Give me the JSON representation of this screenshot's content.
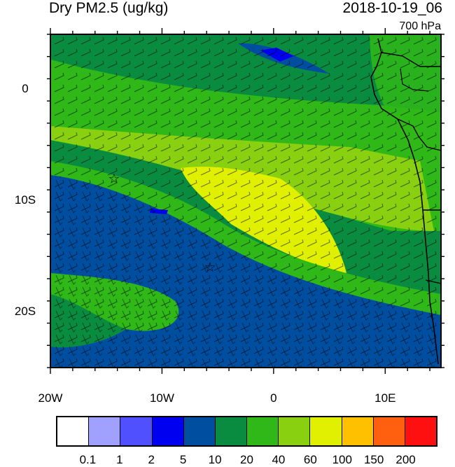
{
  "title": "Dry PM2.5 (ug/kg)",
  "datetime": "2018-10-19_06",
  "level": "700 hPa",
  "map": {
    "lon_range": [
      -20,
      15
    ],
    "lat_range": [
      -25,
      5
    ],
    "x_ticks": [
      {
        "lon": -20,
        "label": "20W"
      },
      {
        "lon": -10,
        "label": "10W"
      },
      {
        "lon": 0,
        "label": "0"
      },
      {
        "lon": 10,
        "label": "10E"
      }
    ],
    "y_ticks": [
      {
        "lat": 0,
        "label": "0"
      },
      {
        "lat": -10,
        "label": "10S"
      },
      {
        "lat": -20,
        "label": "20S"
      }
    ],
    "markers": [
      {
        "name": "star-marker-1",
        "lon": -14.3,
        "lat": -8.0,
        "symbol": "☆"
      },
      {
        "name": "star-marker-2",
        "lon": -5.7,
        "lat": -16.0,
        "symbol": "☆"
      }
    ]
  },
  "colorbar": {
    "colors": [
      "#ffffff",
      "#a0a0ff",
      "#5050ff",
      "#0000f0",
      "#004ea0",
      "#0a8c40",
      "#2fb818",
      "#88d010",
      "#e0f000",
      "#ffc000",
      "#ff6010",
      "#ff1010"
    ],
    "labels": [
      "0.1",
      "1",
      "2",
      "5",
      "10",
      "20",
      "40",
      "60",
      "100",
      "150",
      "200"
    ]
  }
}
